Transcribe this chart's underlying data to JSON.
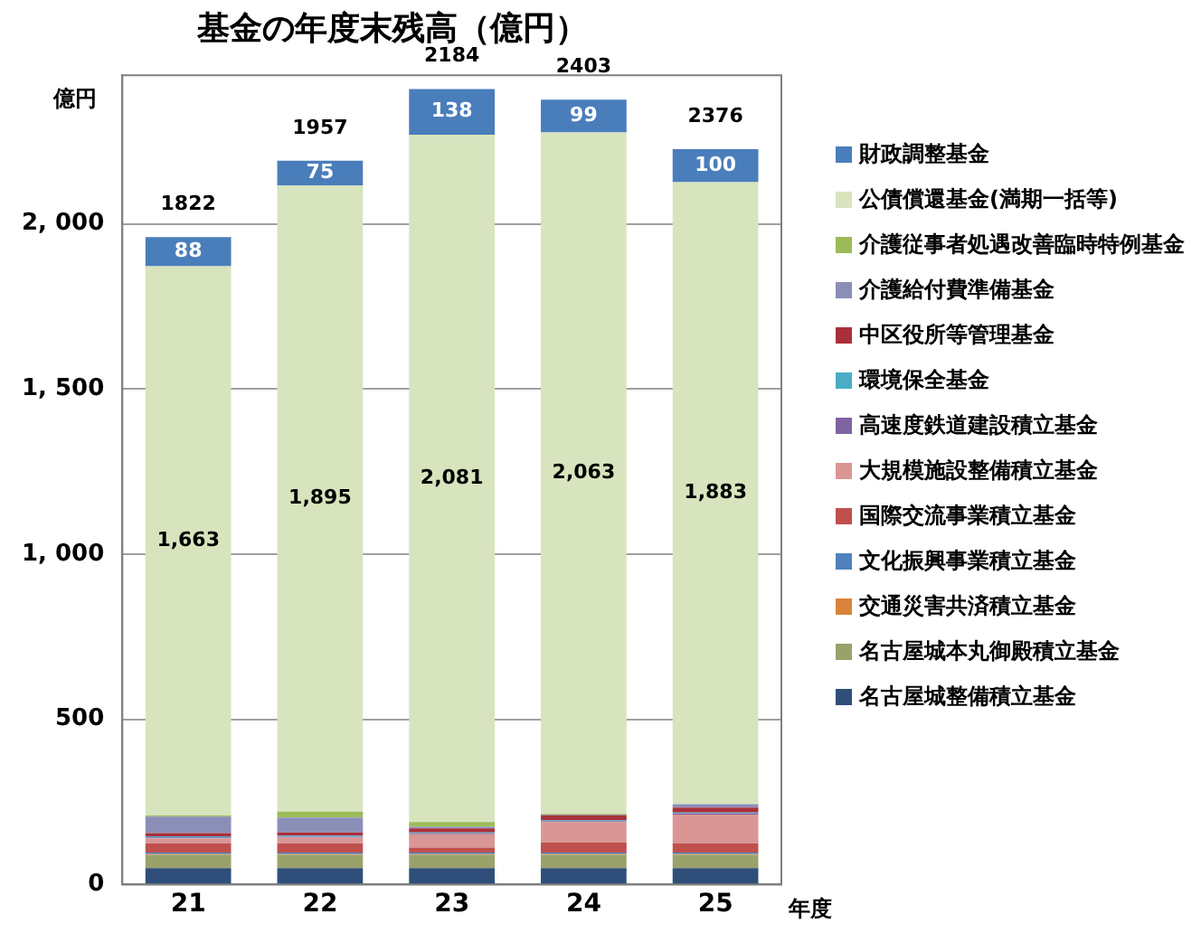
{
  "chart_data": {
    "type": "bar",
    "stacked": true,
    "title": "基金の年度末残高（億円）",
    "ylabel": "億円",
    "xlabel": "年度",
    "categories": [
      "21",
      "22",
      "23",
      "24",
      "25"
    ],
    "ylim": [
      0,
      2450
    ],
    "yticks": [
      0,
      500,
      {
        "value": 1000,
        "label": "1, 000"
      },
      {
        "value": 1500,
        "label": "1, 500"
      },
      {
        "value": 2000,
        "label": "2, 000"
      }
    ],
    "grid": "y",
    "legend": "right",
    "annotations": [
      "1822",
      "1957",
      "2184",
      "2403",
      "2376"
    ],
    "series": [
      {
        "name": "名古屋城整備積立基金",
        "color": "#2f4f7a",
        "values": [
          50,
          50,
          50,
          50,
          50
        ]
      },
      {
        "name": "名古屋城本丸御殿積立基金",
        "color": "#9aa26a",
        "values": [
          40,
          40,
          40,
          40,
          40
        ]
      },
      {
        "name": "交通災害共済積立基金",
        "color": "#d9843a",
        "values": [
          2,
          2,
          2,
          2,
          2
        ]
      },
      {
        "name": "文化振興事業積立基金",
        "color": "#4f81bd",
        "values": [
          5,
          5,
          5,
          5,
          5
        ]
      },
      {
        "name": "国際交流事業積立基金",
        "color": "#c0504d",
        "values": [
          28,
          28,
          15,
          30,
          28
        ]
      },
      {
        "name": "大規模施設整備積立基金",
        "color": "#d99694",
        "values": [
          15,
          17,
          40,
          62,
          87
        ]
      },
      {
        "name": "高速度鉄道建設積立基金",
        "color": "#8064a2",
        "values": [
          3,
          3,
          3,
          3,
          3
        ]
      },
      {
        "name": "環境保全基金",
        "color": "#4bacc6",
        "values": [
          3,
          3,
          3,
          3,
          3
        ]
      },
      {
        "name": "中区役所等管理基金",
        "color": "#a8303a",
        "values": [
          10,
          10,
          12,
          15,
          15
        ]
      },
      {
        "name": "介護給付費準備基金",
        "color": "#8b8fb8",
        "values": [
          50,
          45,
          5,
          2,
          10
        ]
      },
      {
        "name": "介護従事者処遇改善臨時特例基金",
        "color": "#9bbb59",
        "values": [
          3,
          18,
          14,
          2,
          0
        ]
      },
      {
        "name": "公債償還基金(満期一括等)",
        "color": "#d7e4bd",
        "values": [
          1663,
          1895,
          2081,
          2063,
          1883
        ],
        "value_labels": [
          "1,663",
          "1,895",
          "2,081",
          "2,063",
          "1,883"
        ]
      },
      {
        "name": "財政調整基金",
        "color": "#4a7ebb",
        "values": [
          88,
          75,
          138,
          99,
          100
        ],
        "value_labels": [
          "88",
          "75",
          "138",
          "99",
          "100"
        ]
      }
    ]
  }
}
